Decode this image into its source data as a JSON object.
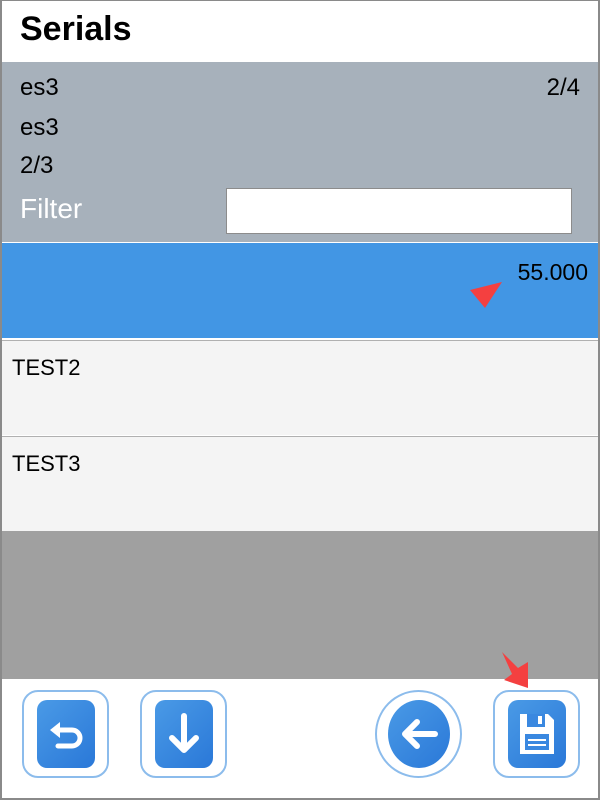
{
  "title": "Serials",
  "info": {
    "line1": "es3",
    "counter": "2/4",
    "line2": "es3",
    "line3": "2/3"
  },
  "filter": {
    "label": "Filter",
    "value": ""
  },
  "rows": [
    {
      "name": "",
      "qty": "55.000",
      "selected": true
    },
    {
      "name": "TEST2",
      "qty": ""
    },
    {
      "name": "TEST3",
      "qty": ""
    }
  ],
  "toolbar": {
    "buttons": [
      "undo-icon",
      "arrow-down-icon",
      "arrow-left-icon",
      "floppy-disk-icon"
    ]
  },
  "colors": {
    "selected": "#4296e4",
    "panel": "#a7b1bb",
    "accent": "#2a78d8",
    "annotation": "#f44040"
  }
}
